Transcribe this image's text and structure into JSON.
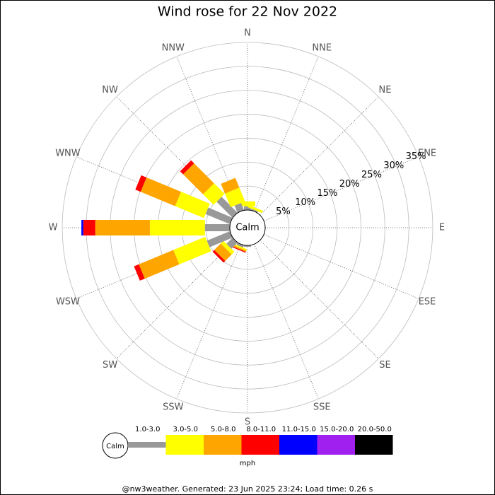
{
  "chart_data": {
    "type": "windrose",
    "title": "Wind rose for 22 Nov 2022",
    "directions": [
      "N",
      "NNE",
      "NE",
      "ENE",
      "E",
      "ESE",
      "SE",
      "SSE",
      "S",
      "SSW",
      "SW",
      "WSW",
      "W",
      "WNW",
      "NW",
      "NNW"
    ],
    "center_label": "Calm",
    "rlim": [
      0,
      35
    ],
    "rticks": [
      {
        "value": 5,
        "label": "5%"
      },
      {
        "value": 10,
        "label": "10%"
      },
      {
        "value": 15,
        "label": "15%"
      },
      {
        "value": 20,
        "label": "20%"
      },
      {
        "value": 25,
        "label": "25%"
      },
      {
        "value": 30,
        "label": "30%"
      },
      {
        "value": 35,
        "label": "35%"
      }
    ],
    "series": [
      {
        "name": "1.0-3.0",
        "color": "#999999",
        "values": [
          0.8,
          0.3,
          0,
          0,
          0,
          0,
          0,
          0,
          0.3,
          0.5,
          1.8,
          5.2,
          5.2,
          5.5,
          4.7,
          1.6
        ]
      },
      {
        "name": "3.0-5.0",
        "color": "#ffff00",
        "values": [
          1.0,
          0.5,
          0,
          0,
          0,
          0,
          0,
          0,
          0,
          0.3,
          0.8,
          7.2,
          11.5,
          6.5,
          3.1,
          3.1
        ]
      },
      {
        "name": "5.0-8.0",
        "color": "#ffa500",
        "values": [
          0,
          0,
          0,
          0,
          0,
          0,
          0,
          0,
          0,
          0.3,
          1.9,
          7.8,
          11.4,
          7.8,
          5.9,
          2.2
        ]
      },
      {
        "name": "8.0-11.0",
        "color": "#ff0000",
        "values": [
          0,
          0,
          0,
          0,
          0,
          0,
          0,
          0,
          0,
          0.2,
          0.5,
          1.1,
          2.5,
          1.2,
          0.9,
          0
        ]
      },
      {
        "name": "11.0-15.0",
        "color": "#0000ff",
        "values": [
          0,
          0,
          0,
          0,
          0,
          0,
          0,
          0,
          0,
          0,
          0,
          0,
          0.4,
          0,
          0,
          0
        ]
      },
      {
        "name": "15.0-20.0",
        "color": "#a020f0",
        "values": [
          0,
          0,
          0,
          0,
          0,
          0,
          0,
          0,
          0,
          0,
          0,
          0,
          0,
          0,
          0,
          0
        ]
      },
      {
        "name": "20.0-50.0",
        "color": "#000000",
        "values": [
          0,
          0,
          0,
          0,
          0,
          0,
          0,
          0,
          0,
          0,
          0,
          0,
          0,
          0,
          0,
          0
        ]
      }
    ],
    "legend_calm": "Calm",
    "legend_unit": "mph",
    "footer": "@nw3weather. Generated: 23 Jun 2025 23:24; Load time: 0.26 s"
  }
}
